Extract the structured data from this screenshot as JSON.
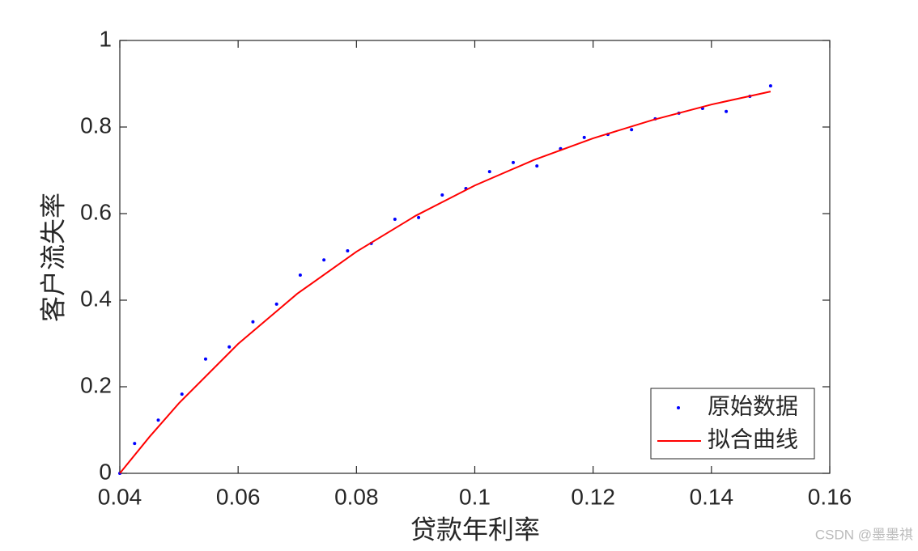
{
  "chart_data": {
    "type": "line",
    "xlabel": "贷款年利率",
    "ylabel": "客户流失率",
    "xlim": [
      0.04,
      0.16
    ],
    "xticks": [
      0.04,
      0.06,
      0.08,
      0.1,
      0.12,
      0.14,
      0.16
    ],
    "ylim": [
      0,
      1
    ],
    "yticks": [
      0,
      0.2,
      0.4,
      0.6,
      0.8,
      1
    ],
    "box": true,
    "legend_location": "southeast",
    "series": [
      {
        "name": "原始数据",
        "color": "#0000ff",
        "style": "points",
        "x": [
          0.04,
          0.0425,
          0.0465,
          0.0505,
          0.0545,
          0.0585,
          0.0625,
          0.0665,
          0.0705,
          0.0745,
          0.0785,
          0.0825,
          0.0865,
          0.0905,
          0.0945,
          0.0985,
          0.1025,
          0.1065,
          0.1105,
          0.1145,
          0.1185,
          0.1225,
          0.1265,
          0.1305,
          0.1345,
          0.1385,
          0.1425,
          0.1465,
          0.15
        ],
        "values": [
          0,
          0.069,
          0.123,
          0.183,
          0.264,
          0.292,
          0.35,
          0.391,
          0.458,
          0.493,
          0.514,
          0.531,
          0.587,
          0.591,
          0.643,
          0.658,
          0.697,
          0.718,
          0.71,
          0.75,
          0.776,
          0.783,
          0.794,
          0.819,
          0.832,
          0.843,
          0.836,
          0.871,
          0.895
        ]
      },
      {
        "name": "拟合曲线",
        "color": "#ff0000",
        "style": "line",
        "x": [
          0.04,
          0.045,
          0.05,
          0.06,
          0.07,
          0.08,
          0.09,
          0.1,
          0.11,
          0.12,
          0.13,
          0.14,
          0.15
        ],
        "values": [
          0,
          0.084,
          0.162,
          0.299,
          0.415,
          0.512,
          0.595,
          0.665,
          0.724,
          0.774,
          0.816,
          0.852,
          0.882
        ]
      }
    ],
    "watermark": "CSDN @墨墨祺"
  }
}
